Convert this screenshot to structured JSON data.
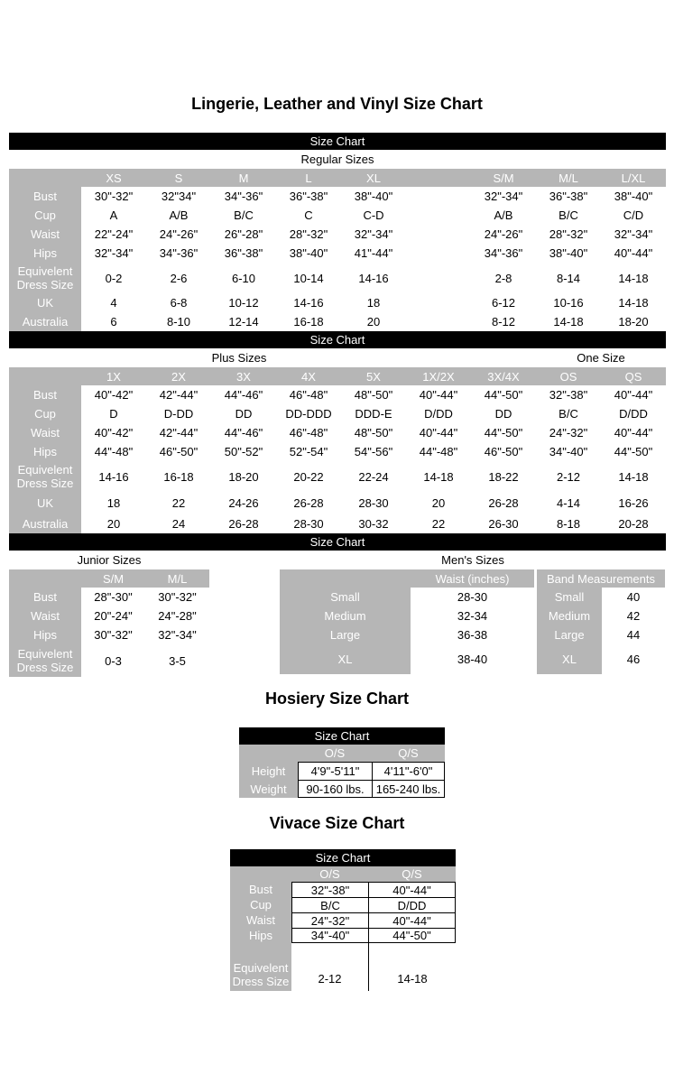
{
  "page_title": "Lingerie, Leather and Vinyl Size Chart",
  "size_chart_bar": "Size Chart",
  "regular": {
    "section_label": "Regular Sizes",
    "columns": [
      "XS",
      "S",
      "M",
      "L",
      "XL",
      "",
      "S/M",
      "M/L",
      "L/XL"
    ],
    "rows": [
      {
        "label": "Bust",
        "values": [
          "30\"-32\"",
          "32\"34\"",
          "34\"-36\"",
          "36\"-38\"",
          "38\"-40\"",
          "",
          "32\"-34\"",
          "36\"-38\"",
          "38\"-40\""
        ]
      },
      {
        "label": "Cup",
        "values": [
          "A",
          "A/B",
          "B/C",
          "C",
          "C-D",
          "",
          "A/B",
          "B/C",
          "C/D"
        ]
      },
      {
        "label": "Waist",
        "values": [
          "22\"-24\"",
          "24\"-26\"",
          "26\"-28\"",
          "28\"-32\"",
          "32\"-34\"",
          "",
          "24\"-26\"",
          "28\"-32\"",
          "32\"-34\""
        ]
      },
      {
        "label": "Hips",
        "values": [
          "32\"-34\"",
          "34\"-36\"",
          "36\"-38\"",
          "38\"-40\"",
          "41\"-44\"",
          "",
          "34\"-36\"",
          "38\"-40\"",
          "40\"-44\""
        ]
      },
      {
        "label": "Equivelent Dress Size",
        "values": [
          "0-2",
          "2-6",
          "6-10",
          "10-14",
          "14-16",
          "",
          "2-8",
          "8-14",
          "14-18"
        ]
      },
      {
        "label": "UK",
        "values": [
          "4",
          "6-8",
          "10-12",
          "14-16",
          "18",
          "",
          "6-12",
          "10-16",
          "14-18"
        ]
      },
      {
        "label": "Australia",
        "values": [
          "6",
          "8-10",
          "12-14",
          "16-18",
          "20",
          "",
          "8-12",
          "14-18",
          "18-20"
        ]
      }
    ]
  },
  "plus": {
    "section_label": "Plus Sizes",
    "one_size_label": "One Size",
    "columns": [
      "1X",
      "2X",
      "3X",
      "4X",
      "5X",
      "1X/2X",
      "3X/4X",
      "OS",
      "QS"
    ],
    "rows": [
      {
        "label": "Bust",
        "values": [
          "40\"-42\"",
          "42\"-44\"",
          "44\"-46\"",
          "46\"-48\"",
          "48\"-50\"",
          "40\"-44\"",
          "44\"-50\"",
          "32\"-38\"",
          "40\"-44\""
        ]
      },
      {
        "label": "Cup",
        "values": [
          "D",
          "D-DD",
          "DD",
          "DD-DDD",
          "DDD-E",
          "D/DD",
          "DD",
          "B/C",
          "D/DD"
        ]
      },
      {
        "label": "Waist",
        "values": [
          "40\"-42\"",
          "42\"-44\"",
          "44\"-46\"",
          "46\"-48\"",
          "48\"-50\"",
          "40\"-44\"",
          "44\"-50\"",
          "24\"-32\"",
          "40\"-44\""
        ]
      },
      {
        "label": "Hips",
        "values": [
          "44\"-48\"",
          "46\"-50\"",
          "50\"-52\"",
          "52\"-54\"",
          "54\"-56\"",
          "44\"-48\"",
          "46\"-50\"",
          "34\"-40\"",
          "44\"-50\""
        ]
      },
      {
        "label": "Equivelent Dress Size",
        "values": [
          "14-16",
          "16-18",
          "18-20",
          "20-22",
          "22-24",
          "14-18",
          "18-22",
          "2-12",
          "14-18"
        ]
      },
      {
        "label": "UK",
        "values": [
          "18",
          "22",
          "24-26",
          "26-28",
          "28-30",
          "20",
          "26-28",
          "4-14",
          "16-26"
        ]
      },
      {
        "label": "Australia",
        "values": [
          "20",
          "24",
          "26-28",
          "28-30",
          "30-32",
          "22",
          "26-30",
          "8-18",
          "20-28"
        ]
      }
    ]
  },
  "junior": {
    "section_label": "Junior Sizes",
    "columns": [
      "S/M",
      "M/L"
    ],
    "rows": [
      {
        "label": "Bust",
        "values": [
          "28\"-30\"",
          "30\"-32\""
        ]
      },
      {
        "label": "Waist",
        "values": [
          "20\"-24\"",
          "24\"-28\""
        ]
      },
      {
        "label": "Hips",
        "values": [
          "30\"-32\"",
          "32\"-34\""
        ]
      },
      {
        "label": "Equivelent Dress Size",
        "values": [
          "0-3",
          "3-5"
        ]
      }
    ]
  },
  "mens": {
    "section_label": "Men's Sizes",
    "waist_header": "Waist (inches)",
    "band_header": "Band Measurements",
    "rows": [
      {
        "label": "Small",
        "waist": "28-30",
        "band": "40"
      },
      {
        "label": "Medium",
        "waist": "32-34",
        "band": "42"
      },
      {
        "label": "Large",
        "waist": "36-38",
        "band": "44"
      },
      {
        "label": "XL",
        "waist": "38-40",
        "band": "46"
      }
    ]
  },
  "hosiery": {
    "title": "Hosiery Size Chart",
    "columns": [
      "O/S",
      "Q/S"
    ],
    "rows": [
      {
        "label": "Height",
        "values": [
          "4'9\"-5'11\"",
          "4'11\"-6'0\""
        ]
      },
      {
        "label": "Weight",
        "values": [
          "90-160 lbs.",
          "165-240 lbs."
        ]
      }
    ]
  },
  "vivace": {
    "title": "Vivace Size Chart",
    "columns": [
      "O/S",
      "Q/S"
    ],
    "rows": [
      {
        "label": "Bust",
        "values": [
          "32\"-38\"",
          "40\"-44\""
        ]
      },
      {
        "label": "Cup",
        "values": [
          "B/C",
          "D/DD"
        ]
      },
      {
        "label": "Waist",
        "values": [
          "24\"-32\"",
          "40\"-44\""
        ]
      },
      {
        "label": "Hips",
        "values": [
          "34\"-40\"",
          "44\"-50\""
        ]
      }
    ],
    "eds": {
      "label": "Equivelent Dress Size",
      "values": [
        "2-12",
        "14-18"
      ]
    }
  }
}
